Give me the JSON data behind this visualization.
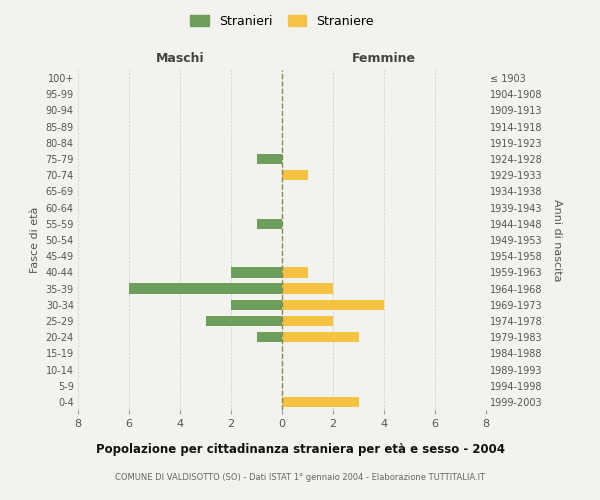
{
  "age_groups": [
    "0-4",
    "5-9",
    "10-14",
    "15-19",
    "20-24",
    "25-29",
    "30-34",
    "35-39",
    "40-44",
    "45-49",
    "50-54",
    "55-59",
    "60-64",
    "65-69",
    "70-74",
    "75-79",
    "80-84",
    "85-89",
    "90-94",
    "95-99",
    "100+"
  ],
  "birth_years": [
    "1999-2003",
    "1994-1998",
    "1989-1993",
    "1984-1988",
    "1979-1983",
    "1974-1978",
    "1969-1973",
    "1964-1968",
    "1959-1963",
    "1954-1958",
    "1949-1953",
    "1944-1948",
    "1939-1943",
    "1934-1938",
    "1929-1933",
    "1924-1928",
    "1919-1923",
    "1914-1918",
    "1909-1913",
    "1904-1908",
    "≤ 1903"
  ],
  "males": [
    0,
    0,
    0,
    0,
    1,
    3,
    2,
    6,
    2,
    0,
    0,
    1,
    0,
    0,
    0,
    1,
    0,
    0,
    0,
    0,
    0
  ],
  "females": [
    3,
    0,
    0,
    0,
    3,
    2,
    4,
    2,
    1,
    0,
    0,
    0,
    0,
    0,
    1,
    0,
    0,
    0,
    0,
    0,
    0
  ],
  "male_color": "#6d9e5a",
  "female_color": "#f5c242",
  "background_color": "#f2f2ee",
  "grid_color": "#cccccc",
  "title": "Popolazione per cittadinanza straniera per età e sesso - 2004",
  "subtitle": "COMUNE DI VALDISOTTO (SO) - Dati ISTAT 1° gennaio 2004 - Elaborazione TUTTITALIA.IT",
  "xlabel_left": "Maschi",
  "xlabel_right": "Femmine",
  "ylabel_left": "Fasce di età",
  "ylabel_right": "Anni di nascita",
  "legend_males": "Stranieri",
  "legend_females": "Straniere",
  "xlim": 8
}
